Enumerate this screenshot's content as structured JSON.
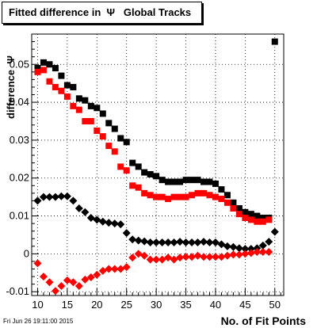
{
  "title": "Fitted difference in  Ψ   Global Tracks",
  "footer_timestamp": "Fri Jun 26 19:11:00 2015",
  "chart_data": {
    "type": "scatter",
    "title": "Fitted difference in  Ψ   Global Tracks",
    "xlabel": "No. of Fit Points",
    "ylabel": "difference  Ψ",
    "xlim": [
      9,
      51.5
    ],
    "ylim": [
      -0.011,
      0.058
    ],
    "x_ticks": [
      10,
      15,
      20,
      25,
      30,
      35,
      40,
      45,
      50
    ],
    "y_ticks": [
      -0.01,
      0,
      0.01,
      0.02,
      0.03,
      0.04,
      0.05
    ],
    "y_tick_labels": [
      "-0.01",
      "0",
      "0.01",
      "0.02",
      "0.03",
      "0.04",
      "0.05"
    ],
    "grid": true,
    "series": [
      {
        "color": "#000000",
        "marker": "square",
        "x": [
          10,
          11,
          12,
          13,
          14,
          15,
          16,
          17,
          18,
          19,
          20,
          21,
          22,
          23,
          24,
          25,
          26,
          27,
          28,
          29,
          30,
          31,
          32,
          33,
          34,
          35,
          36,
          37,
          38,
          39,
          40,
          41,
          42,
          43,
          44,
          45,
          46,
          47,
          48,
          49,
          50
        ],
        "y": [
          0.049,
          0.0505,
          0.05,
          0.049,
          0.047,
          0.0445,
          0.044,
          0.041,
          0.0405,
          0.039,
          0.0385,
          0.037,
          0.0345,
          0.033,
          0.0305,
          0.0295,
          0.024,
          0.023,
          0.0215,
          0.021,
          0.0205,
          0.0195,
          0.019,
          0.019,
          0.019,
          0.0195,
          0.0195,
          0.0195,
          0.019,
          0.019,
          0.0185,
          0.017,
          0.0155,
          0.0135,
          0.012,
          0.011,
          0.0105,
          0.01,
          0.0095,
          0.0095,
          0.056
        ]
      },
      {
        "color": "#ff0000",
        "marker": "square",
        "x": [
          10,
          11,
          12,
          13,
          14,
          15,
          16,
          17,
          18,
          19,
          20,
          21,
          22,
          23,
          24,
          25,
          26,
          27,
          28,
          29,
          30,
          31,
          32,
          33,
          34,
          35,
          36,
          37,
          38,
          39,
          40,
          41,
          42,
          43,
          44,
          45,
          46,
          47,
          48,
          49
        ],
        "y": [
          0.048,
          0.0485,
          0.0455,
          0.044,
          0.043,
          0.0415,
          0.039,
          0.038,
          0.035,
          0.035,
          0.0325,
          0.031,
          0.0285,
          0.027,
          0.023,
          0.022,
          0.018,
          0.0175,
          0.016,
          0.0155,
          0.015,
          0.015,
          0.0145,
          0.015,
          0.015,
          0.015,
          0.0155,
          0.016,
          0.016,
          0.0155,
          0.015,
          0.0145,
          0.0135,
          0.012,
          0.0105,
          0.0095,
          0.009,
          0.0085,
          0.0085,
          0.009
        ]
      },
      {
        "color": "#000000",
        "marker": "diamond",
        "x": [
          10,
          11,
          12,
          13,
          14,
          15,
          16,
          17,
          18,
          19,
          20,
          21,
          22,
          23,
          24,
          25,
          26,
          27,
          28,
          29,
          30,
          31,
          32,
          33,
          34,
          35,
          36,
          37,
          38,
          39,
          40,
          41,
          42,
          43,
          44,
          45,
          46,
          47,
          48,
          49,
          50
        ],
        "y": [
          0.014,
          0.015,
          0.015,
          0.015,
          0.0152,
          0.0152,
          0.014,
          0.012,
          0.011,
          0.0095,
          0.009,
          0.0085,
          0.0082,
          0.008,
          0.0078,
          0.0055,
          0.0038,
          0.0035,
          0.0033,
          0.003,
          0.003,
          0.003,
          0.003,
          0.003,
          0.0032,
          0.003,
          0.003,
          0.003,
          0.0032,
          0.003,
          0.003,
          0.0025,
          0.002,
          0.0018,
          0.0015,
          0.0013,
          0.0013,
          0.0015,
          0.0022,
          0.0032,
          0.0058
        ]
      },
      {
        "color": "#ff0000",
        "marker": "diamond",
        "x": [
          10,
          11,
          12,
          13,
          14,
          15,
          16,
          17,
          18,
          19,
          20,
          21,
          22,
          23,
          24,
          25,
          26,
          27,
          28,
          29,
          30,
          31,
          32,
          33,
          34,
          35,
          36,
          37,
          38,
          39,
          40,
          41,
          42,
          43,
          44,
          45,
          46,
          47,
          48,
          49
        ],
        "y": [
          -0.0025,
          -0.006,
          -0.0075,
          -0.0098,
          -0.0085,
          -0.007,
          -0.0075,
          -0.0085,
          -0.0068,
          -0.0062,
          -0.0055,
          -0.0045,
          -0.004,
          -0.004,
          -0.004,
          -0.0035,
          -0.001,
          0,
          -0.0005,
          -0.0015,
          -0.0015,
          -0.0015,
          -0.001,
          -0.0015,
          -0.001,
          -0.0008,
          -0.0008,
          -0.0005,
          -0.0008,
          -0.0008,
          -0.0008,
          -0.0008,
          -0.0005,
          -0.0002,
          -0.0002,
          0,
          0.0002,
          0.0005,
          0.0005,
          0.0005
        ]
      }
    ]
  }
}
